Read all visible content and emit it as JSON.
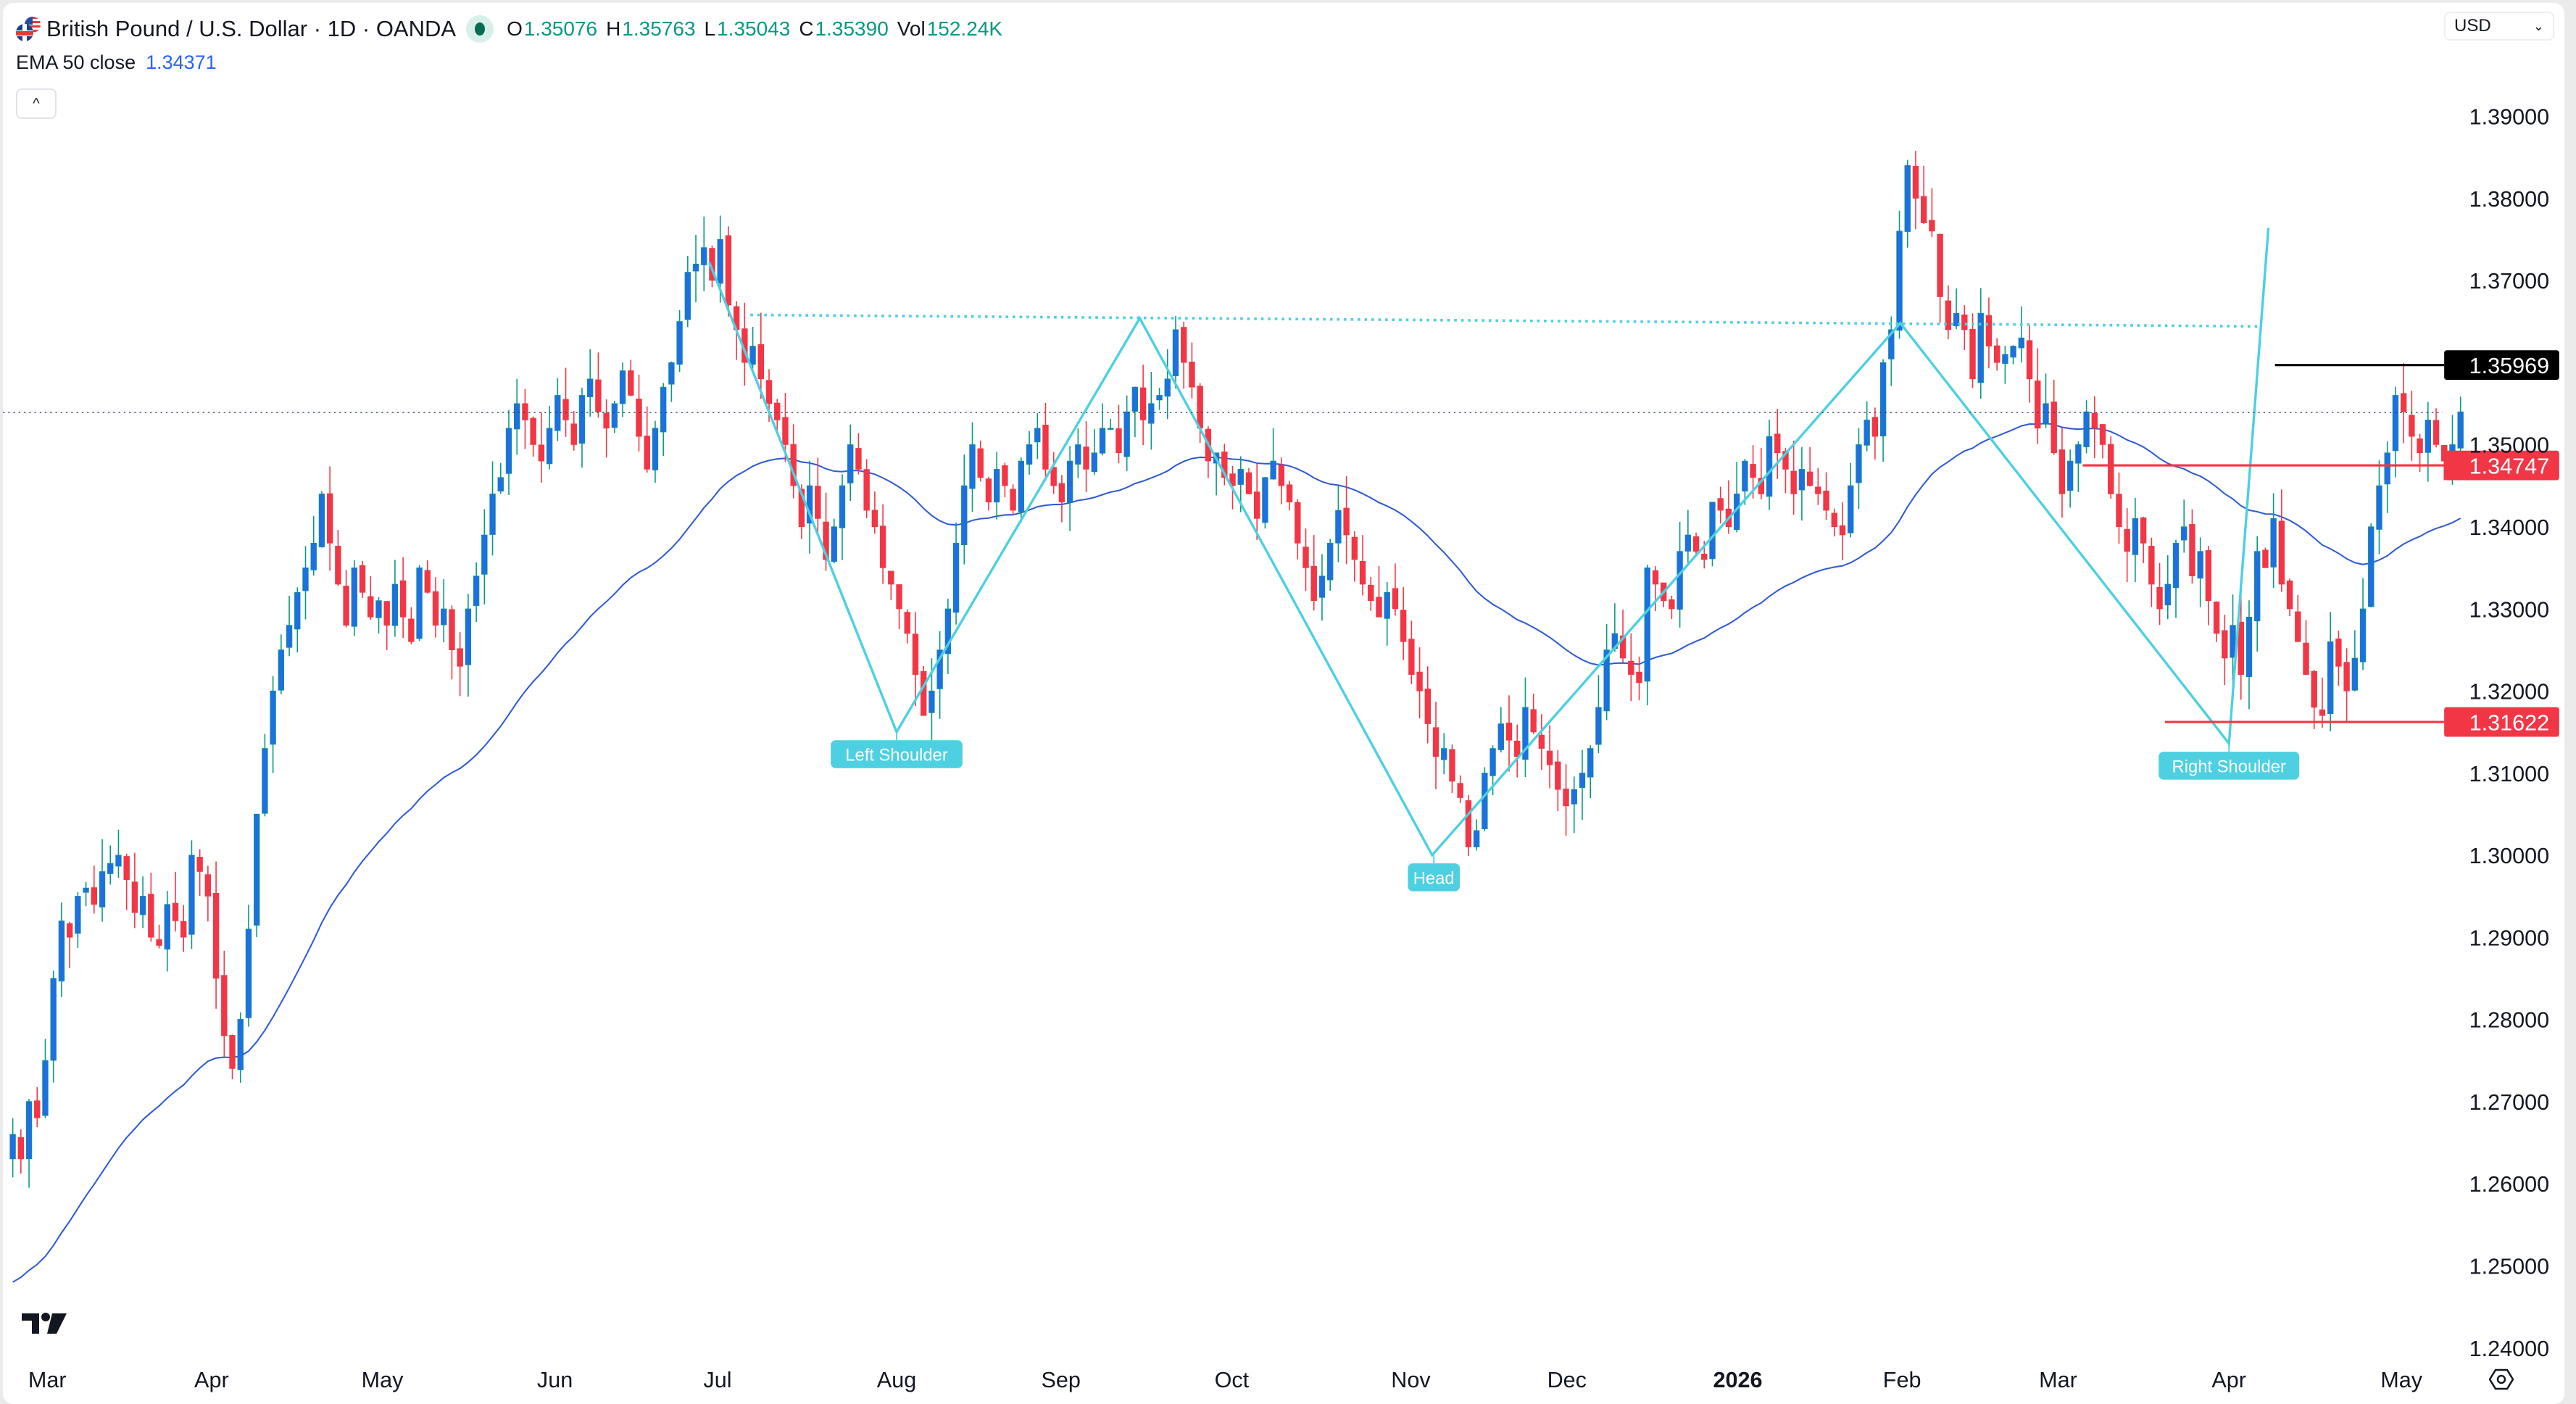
{
  "header": {
    "symbol_title": "British Pound / U.S. Dollar · 1D · OANDA",
    "market_status": "open",
    "ohlc": [
      {
        "key": "O",
        "value": "1.35076"
      },
      {
        "key": "H",
        "value": "1.35763"
      },
      {
        "key": "L",
        "value": "1.35043"
      },
      {
        "key": "C",
        "value": "1.35390"
      },
      {
        "key": "Vol",
        "value": "152.24K"
      }
    ],
    "indicator_label": "EMA 50 close",
    "indicator_value": "1.34371",
    "collapse_icon": "chevron-up-icon",
    "collapse_glyph": "^"
  },
  "currency_selector": {
    "value": "USD",
    "icon": "chevron-down-icon",
    "glyph": "⌄"
  },
  "colors": {
    "up_body": "#1e6fe0",
    "up_wick": "#089981",
    "down": "#f23645",
    "ema": "#2f5bd3",
    "pattern": "#4dd0e1",
    "resistance": "#000000",
    "support": "#f23645",
    "last_price_line": "#2a3f6b"
  },
  "chart_data": {
    "type": "candlestick",
    "title": "British Pound / U.S. Dollar · 1D · OANDA",
    "xlabel": "",
    "ylabel": "USD",
    "ylim": [
      1.24,
      1.39
    ],
    "grid": false,
    "y_ticks": [
      "1.39000",
      "1.38000",
      "1.37000",
      "1.36000",
      "1.35000",
      "1.34000",
      "1.33000",
      "1.32000",
      "1.31000",
      "1.30000",
      "1.29000",
      "1.28000",
      "1.27000",
      "1.26000",
      "1.25000",
      "1.24000"
    ],
    "x_ticks": [
      {
        "label": "Mar",
        "x": 27
      },
      {
        "label": "Apr",
        "x": 127
      },
      {
        "label": "May",
        "x": 231
      },
      {
        "label": "Jun",
        "x": 336
      },
      {
        "label": "Jul",
        "x": 435
      },
      {
        "label": "Aug",
        "x": 544
      },
      {
        "label": "Sep",
        "x": 644
      },
      {
        "label": "Oct",
        "x": 748
      },
      {
        "label": "Nov",
        "x": 857
      },
      {
        "label": "Dec",
        "x": 952
      },
      {
        "label": "2026",
        "x": 1056,
        "bold": true
      },
      {
        "label": "Feb",
        "x": 1156
      },
      {
        "label": "Mar",
        "x": 1251
      },
      {
        "label": "Apr",
        "x": 1355
      },
      {
        "label": "May",
        "x": 1460
      }
    ],
    "candle_x_start": 6,
    "candle_spacing": 4.95,
    "closes": [
      1.266,
      1.263,
      1.27,
      1.268,
      1.275,
      1.285,
      1.292,
      1.29,
      1.295,
      1.296,
      1.294,
      1.298,
      1.299,
      1.3,
      1.297,
      1.293,
      1.295,
      1.29,
      1.289,
      1.294,
      1.292,
      1.29,
      1.3,
      1.298,
      1.295,
      1.285,
      1.278,
      1.274,
      1.28,
      1.291,
      1.305,
      1.313,
      1.32,
      1.325,
      1.328,
      1.332,
      1.335,
      1.338,
      1.344,
      1.338,
      1.333,
      1.328,
      1.335,
      1.332,
      1.329,
      1.331,
      1.328,
      1.333,
      1.329,
      1.326,
      1.335,
      1.332,
      1.328,
      1.33,
      1.325,
      1.323,
      1.33,
      1.334,
      1.339,
      1.344,
      1.346,
      1.352,
      1.355,
      1.353,
      1.35,
      1.348,
      1.352,
      1.356,
      1.353,
      1.35,
      1.356,
      1.358,
      1.354,
      1.352,
      1.355,
      1.359,
      1.356,
      1.351,
      1.347,
      1.352,
      1.357,
      1.36,
      1.365,
      1.371,
      1.372,
      1.374,
      1.37,
      1.375,
      1.367,
      1.364,
      1.36,
      1.362,
      1.358,
      1.355,
      1.353,
      1.35,
      1.345,
      1.34,
      1.345,
      1.341,
      1.336,
      1.34,
      1.345,
      1.35,
      1.347,
      1.342,
      1.34,
      1.335,
      1.333,
      1.33,
      1.327,
      1.322,
      1.317,
      1.32,
      1.325,
      1.33,
      1.338,
      1.345,
      1.35,
      1.346,
      1.343,
      1.347,
      1.345,
      1.342,
      1.348,
      1.35,
      1.352,
      1.347,
      1.345,
      1.343,
      1.348,
      1.35,
      1.347,
      1.349,
      1.352,
      1.352,
      1.349,
      1.354,
      1.357,
      1.353,
      1.355,
      1.356,
      1.358,
      1.364,
      1.36,
      1.357,
      1.352,
      1.348,
      1.349,
      1.346,
      1.345,
      1.347,
      1.344,
      1.341,
      1.346,
      1.348,
      1.345,
      1.343,
      1.338,
      1.335,
      1.331,
      1.334,
      1.338,
      1.342,
      1.339,
      1.336,
      1.333,
      1.331,
      1.329,
      1.332,
      1.33,
      1.326,
      1.322,
      1.32,
      1.316,
      1.312,
      1.313,
      1.309,
      1.307,
      1.301,
      1.303,
      1.31,
      1.313,
      1.316,
      1.314,
      1.312,
      1.318,
      1.315,
      1.313,
      1.311,
      1.308,
      1.306,
      1.308,
      1.31,
      1.313,
      1.318,
      1.325,
      1.327,
      1.324,
      1.322,
      1.321,
      1.335,
      1.333,
      1.331,
      1.33,
      1.337,
      1.339,
      1.337,
      1.336,
      1.343,
      1.342,
      1.34,
      1.344,
      1.348,
      1.346,
      1.344,
      1.351,
      1.349,
      1.347,
      1.344,
      1.347,
      1.345,
      1.344,
      1.342,
      1.34,
      1.339,
      1.345,
      1.35,
      1.353,
      1.351,
      1.36,
      1.364,
      1.376,
      1.384,
      1.38,
      1.377,
      1.376,
      1.368,
      1.364,
      1.366,
      1.364,
      1.358,
      1.366,
      1.362,
      1.36,
      1.361,
      1.362,
      1.363,
      1.358,
      1.352,
      1.355,
      1.349,
      1.344,
      1.348,
      1.35,
      1.354,
      1.352,
      1.35,
      1.344,
      1.34,
      1.337,
      1.341,
      1.338,
      1.333,
      1.33,
      1.333,
      1.338,
      1.34,
      1.334,
      1.337,
      1.331,
      1.327,
      1.324,
      1.328,
      1.322,
      1.329,
      1.337,
      1.335,
      1.341,
      1.333,
      1.33,
      1.326,
      1.322,
      1.318,
      1.317,
      1.326,
      1.323,
      1.32,
      1.324,
      1.33,
      1.34,
      1.345,
      1.349,
      1.356,
      1.354,
      1.351,
      1.349,
      1.353,
      1.35,
      1.348,
      1.35,
      1.354
    ],
    "ema_label": "EMA 50 close",
    "ema_last": 1.34371,
    "last_price": 1.3539,
    "pattern": {
      "name": "Inverse head and shoulders",
      "labels": [
        {
          "text": "Left Shoulder",
          "x": 544,
          "y": 444
        },
        {
          "text": "Head",
          "x": 871,
          "y": 519
        },
        {
          "text": "Right Shoulder",
          "x": 1355,
          "y": 451
        }
      ],
      "points": [
        [
          430,
          158
        ],
        [
          544,
          444
        ],
        [
          692,
          192
        ],
        [
          870,
          519
        ],
        [
          1155,
          195
        ],
        [
          1355,
          451
        ],
        [
          1379,
          137
        ]
      ],
      "neckline": [
        [
          455,
          190
        ],
        [
          1375,
          197
        ]
      ]
    },
    "levels": [
      {
        "label": "1.35969",
        "price": 1.35969,
        "x_start": 1383,
        "color": "#000000"
      },
      {
        "label": "1.34747",
        "price": 1.34747,
        "x_start": 1266,
        "color": "#f23645"
      },
      {
        "label": "1.31622",
        "price": 1.31622,
        "x_start": 1316,
        "color": "#f23645"
      }
    ]
  },
  "footer": {
    "logo_icon": "tradingview-logo-icon",
    "settings_icon": "auto-scale-settings-icon"
  }
}
